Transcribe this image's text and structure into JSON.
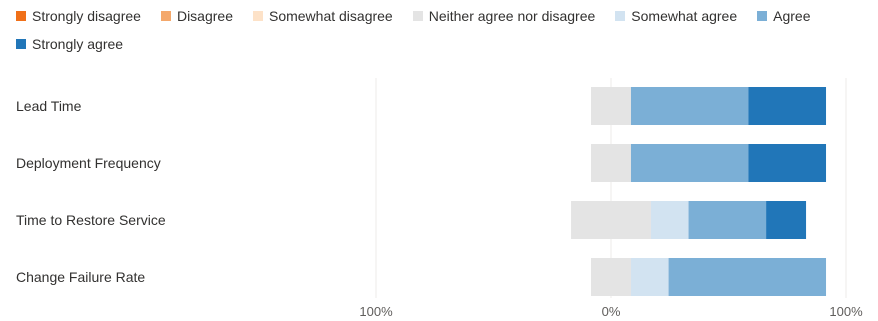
{
  "chart_data": {
    "type": "bar",
    "orientation": "horizontal",
    "stacked": "diverging",
    "categories": [
      "Lead Time",
      "Deployment Frequency",
      "Time to Restore Service",
      "Change Failure Rate"
    ],
    "series": [
      {
        "name": "Strongly disagree",
        "color": "#f07019",
        "values": [
          0,
          0,
          0,
          0
        ]
      },
      {
        "name": "Disagree",
        "color": "#f4a86b",
        "values": [
          0,
          0,
          0,
          0
        ]
      },
      {
        "name": "Somewhat disagree",
        "color": "#fde2c8",
        "values": [
          0,
          0,
          0,
          0
        ]
      },
      {
        "name": "Neither agree nor disagree",
        "color": "#e4e4e4",
        "values": [
          17,
          17,
          34,
          17
        ]
      },
      {
        "name": "Somewhat agree",
        "color": "#d2e3f1",
        "values": [
          0,
          0,
          16,
          16
        ]
      },
      {
        "name": "Agree",
        "color": "#7bafd6",
        "values": [
          50,
          50,
          33,
          67
        ]
      },
      {
        "name": "Strongly agree",
        "color": "#2176b8",
        "values": [
          33,
          33,
          17,
          0
        ]
      }
    ],
    "neutral_series": "Neither agree nor disagree",
    "xlim": [
      -100,
      100
    ],
    "x_tick_labels": [
      "100%",
      "0%",
      "100%"
    ],
    "legend_position": "top",
    "grid": true
  }
}
